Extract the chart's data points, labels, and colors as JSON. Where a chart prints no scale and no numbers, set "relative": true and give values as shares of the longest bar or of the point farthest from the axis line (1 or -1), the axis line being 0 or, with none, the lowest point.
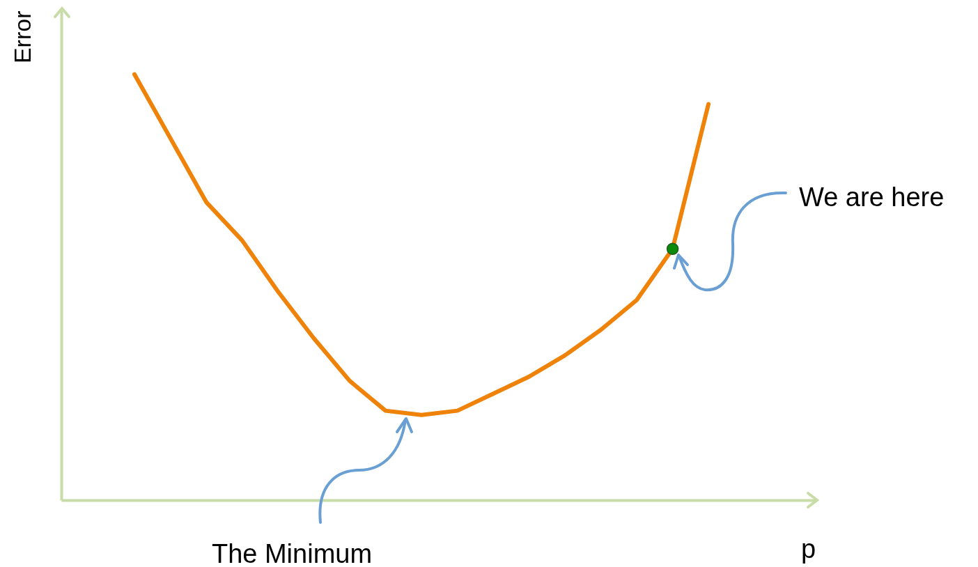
{
  "chart_data": {
    "type": "line",
    "ylabel": "Error",
    "xlabel": "p",
    "relative": true,
    "categories": [
      null,
      null,
      null,
      null,
      null,
      null,
      null,
      null,
      null,
      null,
      null,
      null,
      null,
      null,
      null,
      null,
      null
    ],
    "series": [
      {
        "color": "#ef8208",
        "values": [
          1.0,
          0.85,
          0.7,
          0.61,
          0.49,
          0.38,
          0.28,
          0.21,
          0.2,
          0.21,
          0.25,
          0.29,
          0.34,
          0.4,
          0.47,
          0.59,
          0.93
        ]
      }
    ],
    "annotations": [
      "We are here",
      "The Minimum"
    ]
  }
}
